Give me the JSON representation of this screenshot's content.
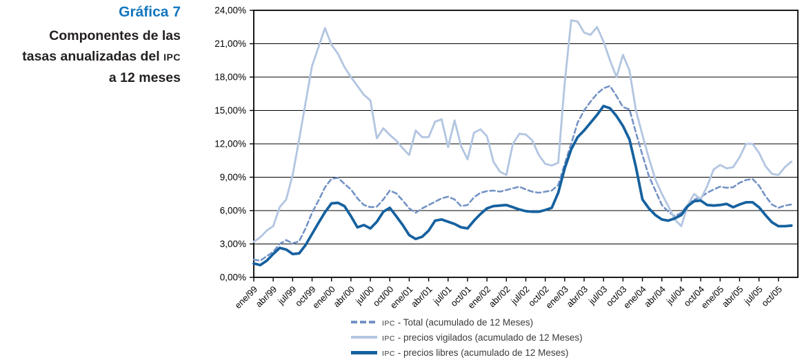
{
  "title": {
    "number": "Gráfica 7",
    "line1": "Componentes de las",
    "line2": "tasas anualizadas del",
    "ipc": "IPC",
    "line3": "a 12 meses",
    "number_color": "#1377bf",
    "text_color": "#231f20"
  },
  "chart_data": {
    "type": "line",
    "title": "Componentes de las tasas anualizadas del IPC a 12 meses",
    "xlabel": "",
    "ylabel": "",
    "ylim": [
      0,
      24
    ],
    "ytick_step": 3,
    "grid": "horizontal",
    "legend_position": "bottom",
    "y_tick_labels": [
      "0,00%",
      "3,00%",
      "6,00%",
      "9,00%",
      "12,00%",
      "15,00%",
      "18,00%",
      "21,00%",
      "24,00%"
    ],
    "x_tick_labels": [
      "ene/99",
      "abr/99",
      "jul/99",
      "oct/99",
      "ene/00",
      "abr/00",
      "jul/00",
      "oct/00",
      "ene/01",
      "abr/01",
      "jul/01",
      "oct/01",
      "ene/02",
      "abr/02",
      "jul/02",
      "oct/02",
      "ene/03",
      "abr/03",
      "jul/03",
      "oct/03",
      "ene/04",
      "abr/04",
      "jul/04",
      "oct/04",
      "ene/05",
      "abr/05",
      "jul/05",
      "oct/05"
    ],
    "x_tick_every_n_months": 3,
    "months_span": "ene/99 - dic/05",
    "axis_color": "#000000",
    "series": [
      {
        "prefix": "IPC",
        "rest": " - Total (acumulado de 12 Meses)",
        "style": "dashed",
        "color": "#7392c5",
        "values": [
          1.6,
          1.5,
          1.9,
          2.3,
          3.0,
          3.35,
          3.05,
          3.25,
          4.4,
          5.8,
          6.9,
          8.1,
          8.85,
          8.95,
          8.4,
          7.9,
          7.1,
          6.5,
          6.3,
          6.35,
          7.0,
          7.8,
          7.55,
          6.9,
          6.2,
          5.8,
          6.2,
          6.5,
          6.8,
          7.1,
          7.25,
          7.0,
          6.4,
          6.5,
          7.2,
          7.6,
          7.75,
          7.8,
          7.7,
          7.85,
          8.0,
          8.15,
          7.9,
          7.7,
          7.6,
          7.7,
          7.8,
          8.3,
          10.2,
          12.0,
          13.9,
          15.0,
          15.8,
          16.5,
          17.0,
          17.2,
          16.3,
          15.3,
          15.1,
          13.0,
          11.0,
          9.1,
          7.8,
          6.5,
          5.9,
          5.5,
          5.8,
          6.5,
          7.0,
          7.2,
          7.6,
          7.9,
          8.15,
          8.05,
          8.1,
          8.5,
          8.75,
          8.85,
          8.25,
          7.3,
          6.55,
          6.25,
          6.45,
          6.55
        ]
      },
      {
        "prefix": "IPC",
        "rest": " - precios vigilados (acumulado de 12 Meses)",
        "style": "solid",
        "color": "#b3c6e1",
        "values": [
          3.2,
          3.6,
          4.2,
          4.6,
          6.3,
          7.0,
          9.2,
          12.4,
          15.7,
          19.0,
          20.7,
          22.4,
          20.9,
          20.1,
          18.9,
          18.0,
          17.2,
          16.4,
          15.9,
          12.5,
          13.4,
          12.8,
          12.3,
          11.6,
          11.0,
          13.2,
          12.6,
          12.6,
          14.0,
          14.2,
          11.7,
          14.1,
          11.8,
          10.6,
          13.0,
          13.3,
          12.7,
          10.4,
          9.5,
          9.2,
          12.0,
          12.9,
          12.85,
          12.3,
          11.0,
          10.2,
          10.05,
          10.3,
          17.5,
          23.1,
          23.0,
          22.0,
          21.8,
          22.5,
          21.2,
          19.5,
          18.0,
          20.0,
          18.6,
          15.0,
          12.8,
          10.7,
          8.8,
          7.5,
          6.4,
          5.2,
          4.6,
          6.5,
          7.5,
          7.0,
          8.2,
          9.7,
          10.1,
          9.8,
          9.9,
          10.8,
          12.0,
          12.0,
          11.2,
          10.0,
          9.3,
          9.2,
          9.9,
          10.4
        ]
      },
      {
        "prefix": "IPC",
        "rest": " - precios libres (acumulado de 12 Meses)",
        "style": "solid-thick",
        "color": "#16619f",
        "values": [
          1.25,
          1.1,
          1.5,
          2.1,
          2.65,
          2.5,
          2.1,
          2.15,
          2.9,
          3.9,
          4.9,
          5.85,
          6.65,
          6.7,
          6.4,
          5.5,
          4.5,
          4.7,
          4.4,
          5.0,
          5.9,
          6.25,
          5.5,
          4.7,
          3.8,
          3.45,
          3.65,
          4.2,
          5.1,
          5.2,
          5.0,
          4.8,
          4.5,
          4.4,
          5.1,
          5.7,
          6.2,
          6.4,
          6.45,
          6.5,
          6.3,
          6.1,
          5.95,
          5.9,
          5.9,
          6.05,
          6.25,
          7.6,
          9.8,
          11.5,
          12.6,
          13.2,
          13.9,
          14.6,
          15.4,
          15.2,
          14.5,
          13.6,
          12.4,
          9.9,
          7.0,
          6.2,
          5.6,
          5.2,
          5.1,
          5.3,
          5.6,
          6.4,
          6.85,
          6.9,
          6.5,
          6.45,
          6.5,
          6.6,
          6.3,
          6.55,
          6.75,
          6.75,
          6.3,
          5.6,
          4.95,
          4.6,
          4.6,
          4.65
        ]
      }
    ]
  }
}
